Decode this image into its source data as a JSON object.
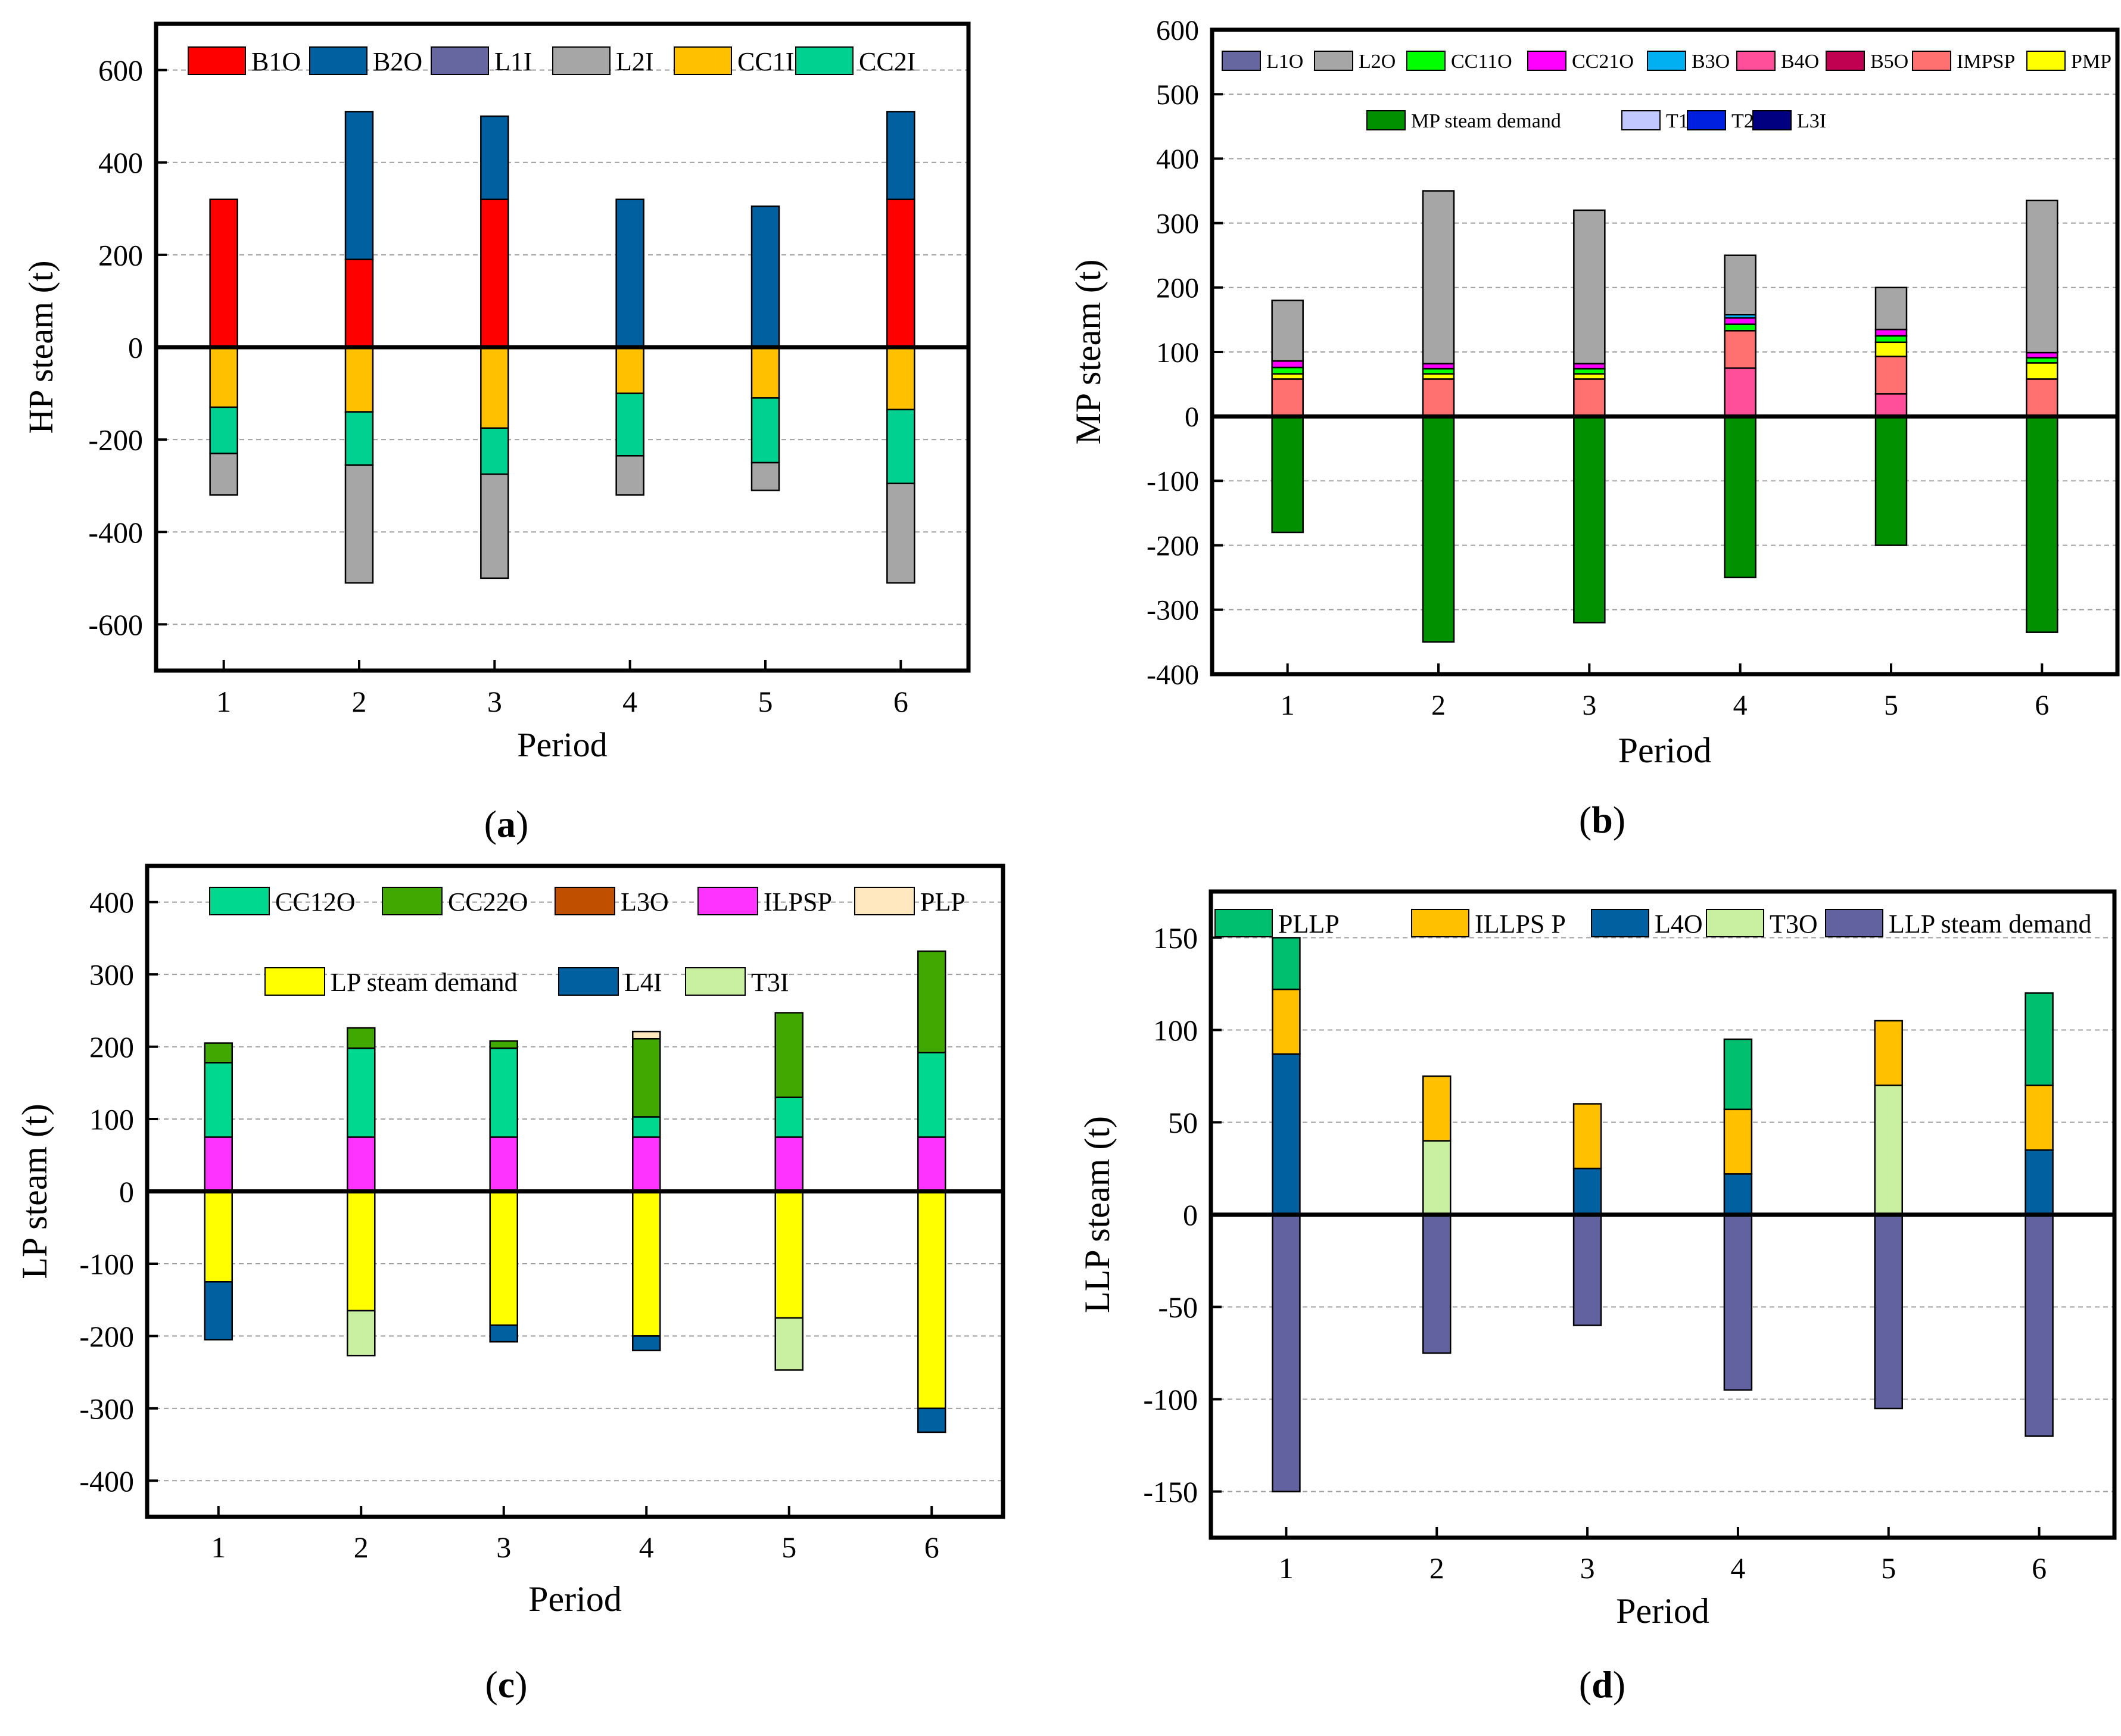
{
  "chart_data": [
    {
      "id": "a",
      "type": "bar",
      "stacked": true,
      "caption_letter": "a",
      "xlabel": "Period",
      "ylabel": "HP steam (t)",
      "categories": [
        "1",
        "2",
        "3",
        "4",
        "5",
        "6"
      ],
      "ylim": [
        -700,
        700
      ],
      "yticks": [
        -600,
        -400,
        -200,
        0,
        200,
        400,
        600
      ],
      "ytick_labels": [
        "-600",
        "-400",
        "-200",
        "0",
        "200",
        "400",
        "600"
      ],
      "grid": "dashed-horizontal",
      "legend_position": "top",
      "legend": [
        [
          "B1O",
          "B2O",
          "L1I",
          "L2I",
          "CC1I",
          "CC2I"
        ]
      ],
      "series": [
        {
          "name": "B1O",
          "color": "#ff0000",
          "values": [
            320,
            190,
            320,
            0,
            0,
            320
          ]
        },
        {
          "name": "B2O",
          "color": "#0060a0",
          "values": [
            0,
            320,
            180,
            320,
            305,
            190
          ]
        },
        {
          "name": "L1I",
          "color": "#6666a0",
          "values": [
            0,
            0,
            0,
            0,
            0,
            0
          ]
        },
        {
          "name": "L2I",
          "color": "#a6a6a6",
          "values": [
            -90,
            -255,
            -225,
            -85,
            -60,
            -215
          ]
        },
        {
          "name": "CC1I",
          "color": "#ffc000",
          "values": [
            -130,
            -140,
            -175,
            -100,
            -110,
            -135
          ]
        },
        {
          "name": "CC2I",
          "color": "#00d090",
          "values": [
            -100,
            -115,
            -100,
            -135,
            -140,
            -160
          ]
        }
      ],
      "negative_stack_order": [
        "CC1I",
        "CC2I",
        "L2I",
        "L1I"
      ]
    },
    {
      "id": "b",
      "type": "bar",
      "stacked": true,
      "caption_letter": "b",
      "xlabel": "Period",
      "ylabel": "MP steam (t)",
      "categories": [
        "1",
        "2",
        "3",
        "4",
        "5",
        "6"
      ],
      "ylim": [
        -400,
        600
      ],
      "yticks": [
        -400,
        -300,
        -200,
        -100,
        0,
        100,
        200,
        300,
        400,
        500,
        600
      ],
      "ytick_labels": [
        "-400",
        "-300",
        "-200",
        "-100",
        "0",
        "100",
        "200",
        "300",
        "400",
        "500",
        "600"
      ],
      "grid": "dashed-horizontal",
      "legend_position": "top",
      "legend": [
        [
          "L1O",
          "L2O",
          "CC11O",
          "CC21O",
          "B3O",
          "B4O",
          "B5O",
          "IMPSP",
          "PMP"
        ],
        [
          "MP steam demand",
          "T1I",
          "T2I",
          "L3I"
        ]
      ],
      "series": [
        {
          "name": "B4O",
          "color": "#ff4f9a",
          "values": [
            0,
            0,
            0,
            75,
            35,
            0
          ]
        },
        {
          "name": "IMPSP",
          "color": "#ff7070",
          "values": [
            58,
            58,
            58,
            58,
            58,
            58
          ]
        },
        {
          "name": "PMP",
          "color": "#ffff00",
          "values": [
            8,
            8,
            8,
            0,
            22,
            25
          ]
        },
        {
          "name": "CC11O",
          "color": "#00ff00",
          "values": [
            10,
            8,
            8,
            10,
            10,
            8
          ]
        },
        {
          "name": "CC21O",
          "color": "#ff00ff",
          "values": [
            10,
            8,
            8,
            10,
            10,
            8
          ]
        },
        {
          "name": "B3O",
          "color": "#00b0f0",
          "values": [
            0,
            0,
            0,
            5,
            0,
            0
          ]
        },
        {
          "name": "B5O",
          "color": "#c00050",
          "values": [
            0,
            0,
            0,
            0,
            0,
            0
          ]
        },
        {
          "name": "L1O",
          "color": "#6666a0",
          "values": [
            0,
            0,
            0,
            0,
            0,
            0
          ]
        },
        {
          "name": "L2O",
          "color": "#a6a6a6",
          "values": [
            94,
            268,
            238,
            92,
            65,
            236
          ]
        },
        {
          "name": "MP steam demand",
          "color": "#009000",
          "values": [
            -180,
            -350,
            -320,
            -250,
            -200,
            -335
          ]
        },
        {
          "name": "T1I",
          "color": "#c0c8ff",
          "values": [
            0,
            0,
            0,
            0,
            0,
            0
          ]
        },
        {
          "name": "T2I",
          "color": "#0020e0",
          "values": [
            0,
            0,
            0,
            0,
            0,
            0
          ]
        },
        {
          "name": "L3I",
          "color": "#000080",
          "values": [
            0,
            0,
            0,
            0,
            0,
            0
          ]
        }
      ]
    },
    {
      "id": "c",
      "type": "bar",
      "stacked": true,
      "caption_letter": "c",
      "xlabel": "Period",
      "ylabel": "LP steam (t)",
      "categories": [
        "1",
        "2",
        "3",
        "4",
        "5",
        "6"
      ],
      "ylim": [
        -450,
        450
      ],
      "yticks": [
        -400,
        -300,
        -200,
        -100,
        0,
        100,
        200,
        300,
        400
      ],
      "ytick_labels": [
        "-400",
        "-300",
        "-200",
        "-100",
        "0",
        "100",
        "200",
        "300",
        "400"
      ],
      "grid": "dashed-horizontal",
      "legend_position": "top",
      "legend": [
        [
          "CC12O",
          "CC22O",
          "L3O",
          "ILPSP",
          "PLP"
        ],
        [
          "LP steam demand",
          "L4I",
          "T3I"
        ]
      ],
      "series": [
        {
          "name": "ILPSP",
          "color": "#ff33ff",
          "values": [
            75,
            75,
            75,
            75,
            75,
            75
          ]
        },
        {
          "name": "CC12O",
          "color": "#00d890",
          "values": [
            103,
            123,
            123,
            28,
            55,
            117
          ]
        },
        {
          "name": "CC22O",
          "color": "#40a800",
          "values": [
            27,
            28,
            10,
            108,
            117,
            140
          ]
        },
        {
          "name": "L3O",
          "color": "#c05000",
          "values": [
            0,
            0,
            0,
            0,
            0,
            0
          ]
        },
        {
          "name": "PLP",
          "color": "#ffe8c0",
          "values": [
            0,
            0,
            0,
            10,
            0,
            0
          ]
        },
        {
          "name": "LP steam demand",
          "color": "#ffff00",
          "values": [
            -125,
            -165,
            -185,
            -200,
            -175,
            -300
          ]
        },
        {
          "name": "L4I",
          "color": "#0060a0",
          "values": [
            -80,
            0,
            -23,
            -20,
            0,
            -33
          ]
        },
        {
          "name": "T3I",
          "color": "#c8f0a0",
          "values": [
            0,
            -62,
            0,
            0,
            -72,
            0
          ]
        }
      ]
    },
    {
      "id": "d",
      "type": "bar",
      "stacked": true,
      "caption_letter": "d",
      "xlabel": "Period",
      "ylabel": "LLP steam (t)",
      "categories": [
        "1",
        "2",
        "3",
        "4",
        "5",
        "6"
      ],
      "ylim": [
        -175,
        175
      ],
      "yticks": [
        -150,
        -100,
        -50,
        0,
        50,
        100,
        150
      ],
      "ytick_labels": [
        "-150",
        "-100",
        "-50",
        "0",
        "50",
        "100",
        "150"
      ],
      "grid": "dashed-horizontal",
      "legend_position": "top",
      "legend": [
        [
          "PLLP",
          "ILLPS P",
          "L4O",
          "T3O",
          "LLP steam demand"
        ]
      ],
      "series": [
        {
          "name": "L4O",
          "color": "#0060a0",
          "values": [
            87,
            0,
            25,
            22,
            0,
            35
          ]
        },
        {
          "name": "T3O",
          "color": "#c8f0a0",
          "values": [
            0,
            40,
            0,
            0,
            70,
            0
          ]
        },
        {
          "name": "ILLPS P",
          "color": "#ffc000",
          "values": [
            35,
            35,
            35,
            35,
            35,
            35
          ]
        },
        {
          "name": "PLLP",
          "color": "#00c070",
          "values": [
            28,
            0,
            0,
            38,
            0,
            50
          ]
        },
        {
          "name": "LLP steam demand",
          "color": "#6262a0",
          "values": [
            -150,
            -75,
            -60,
            -95,
            -105,
            -120
          ]
        }
      ]
    }
  ]
}
